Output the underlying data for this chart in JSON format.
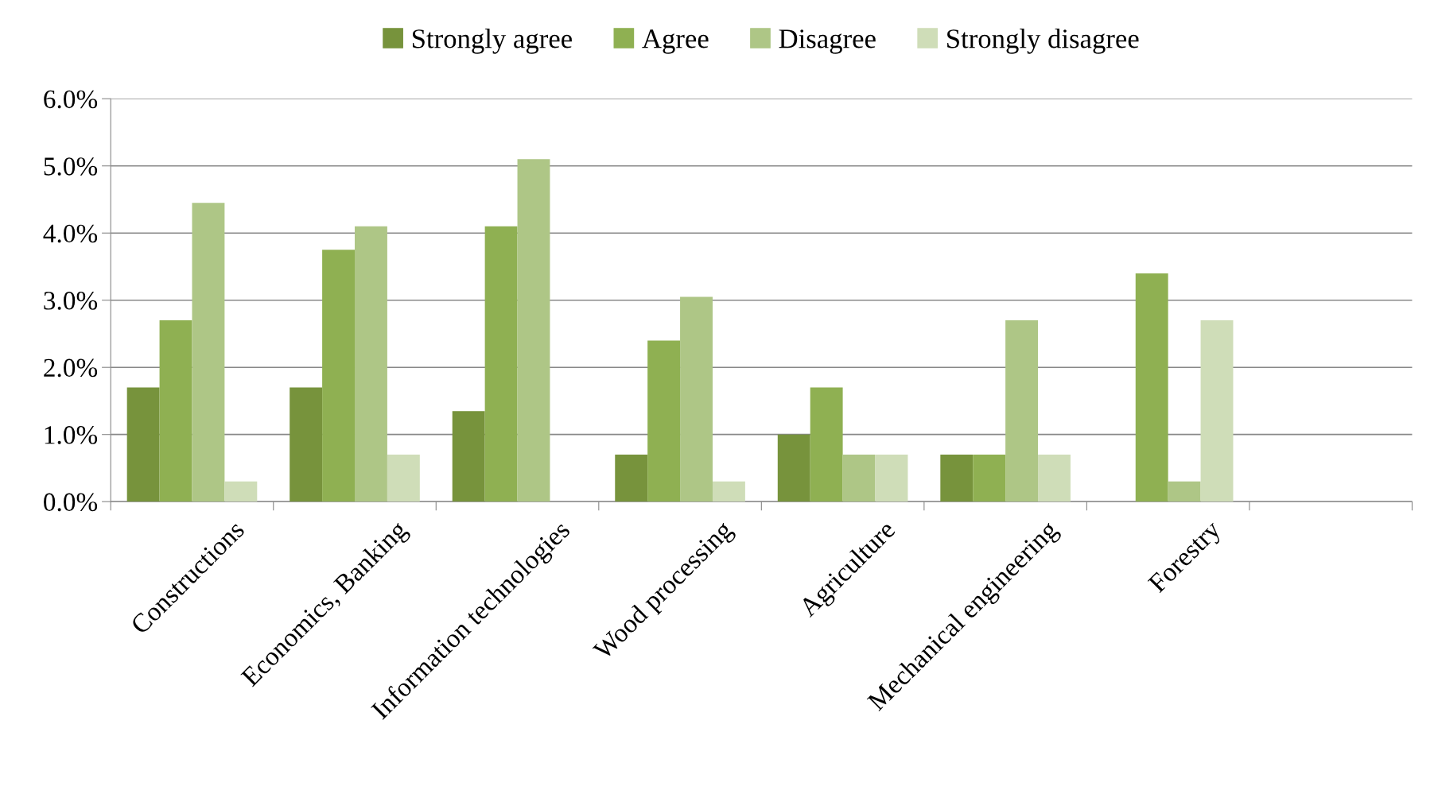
{
  "chart_data": {
    "type": "bar",
    "categories": [
      "Constructions",
      "Economics, Banking",
      "Information technologies",
      "Wood processing",
      "Agriculture",
      "Mechanical engineering",
      "Forestry",
      null
    ],
    "series": [
      {
        "name": "Strongly agree",
        "color": "#77933c",
        "values": [
          1.7,
          1.7,
          1.35,
          0.7,
          1.0,
          0.7,
          0,
          null
        ]
      },
      {
        "name": "Agree",
        "color": "#8fb052",
        "values": [
          2.7,
          3.75,
          4.1,
          2.4,
          1.7,
          0.7,
          3.4,
          null
        ]
      },
      {
        "name": "Disagree",
        "color": "#aec686",
        "values": [
          4.45,
          4.1,
          5.1,
          3.05,
          0.7,
          2.7,
          0.3,
          null
        ]
      },
      {
        "name": "Strongly disagree",
        "color": "#cfddb8",
        "values": [
          0.3,
          0.7,
          0,
          0.3,
          0.7,
          0.7,
          2.7,
          null
        ]
      }
    ],
    "ylim": [
      0,
      6
    ],
    "yticks": [
      {
        "value": 0,
        "label": "0.0%"
      },
      {
        "value": 1,
        "label": "1.0%"
      },
      {
        "value": 2,
        "label": "2.0%"
      },
      {
        "value": 3,
        "label": "3.0%"
      },
      {
        "value": 4,
        "label": "4.0%"
      },
      {
        "value": 5,
        "label": "5.0%"
      },
      {
        "value": 6,
        "label": "6.0%"
      }
    ],
    "grid": "y",
    "legend": "top"
  }
}
